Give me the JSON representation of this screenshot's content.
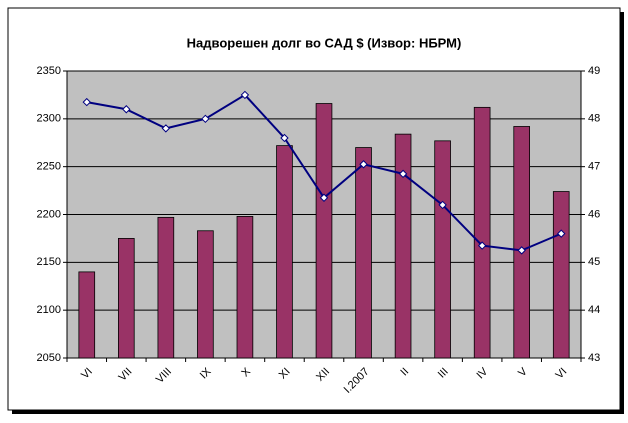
{
  "chart_data": {
    "type": "bar-line",
    "title": "Надворешен долг во САД $ (Извор: НБРМ)",
    "categories": [
      "VI",
      "VII",
      "VIII",
      "IX",
      "X",
      "XI",
      "XII",
      "I.2007",
      "II",
      "III",
      "IV",
      "V",
      "VI"
    ],
    "series": [
      {
        "type": "bar",
        "color": "#993366",
        "values": [
          2140,
          2175,
          2197,
          2183,
          2198,
          2272,
          2316,
          2270,
          2284,
          2277,
          2312,
          2292,
          2224
        ]
      },
      {
        "type": "line",
        "axis": "y2",
        "color": "#000080",
        "values": [
          48.35,
          48.2,
          47.8,
          48.0,
          48.5,
          47.6,
          46.35,
          47.05,
          46.85,
          46.2,
          45.35,
          45.25,
          45.6
        ]
      }
    ],
    "ylim": [
      2050,
      2350
    ],
    "yticks": [
      2050,
      2100,
      2150,
      2200,
      2250,
      2300,
      2350
    ],
    "y2lim": [
      43,
      49
    ],
    "y2ticks": [
      43,
      44,
      45,
      46,
      47,
      48,
      49
    ],
    "grid": true,
    "plot_background": "#c0c0c0"
  }
}
